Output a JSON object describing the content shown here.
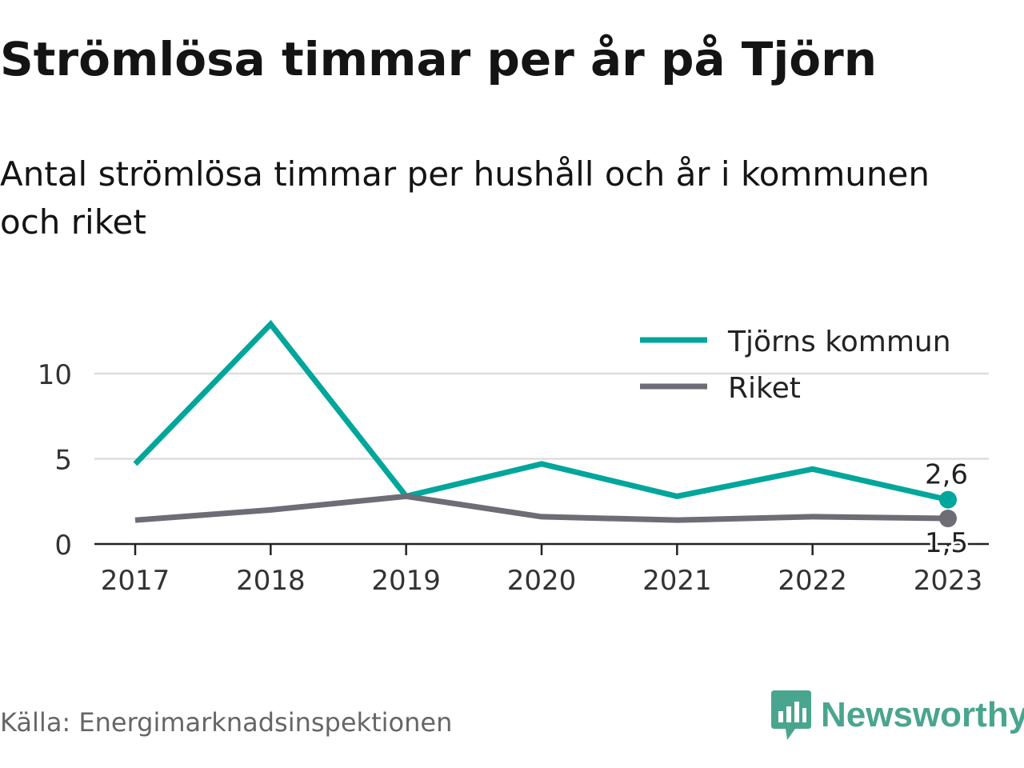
{
  "title": "Strömlösa timmar per år på Tjörn",
  "subtitle": "Antal strömlösa timmar per hushåll och år i kommunen och riket",
  "source": "Källa: Energimarknadsinspektionen",
  "brand": {
    "name": "Newsworthy",
    "color": "#4aa58e"
  },
  "chart_data": {
    "type": "line",
    "x": [
      "2017",
      "2018",
      "2019",
      "2020",
      "2021",
      "2022",
      "2023"
    ],
    "ylim": [
      0,
      13
    ],
    "yticks": [
      0,
      5,
      10
    ],
    "grid": true,
    "legend_position": "top-right",
    "series": [
      {
        "name": "Tjörns kommun",
        "color": "#00a69b",
        "values": [
          4.7,
          12.9,
          2.8,
          4.7,
          2.8,
          4.4,
          2.6
        ],
        "end_label": "2,6"
      },
      {
        "name": "Riket",
        "color": "#6e6c74",
        "values": [
          1.4,
          2.0,
          2.8,
          1.6,
          1.4,
          1.6,
          1.5
        ],
        "end_label": "1,5"
      }
    ]
  }
}
